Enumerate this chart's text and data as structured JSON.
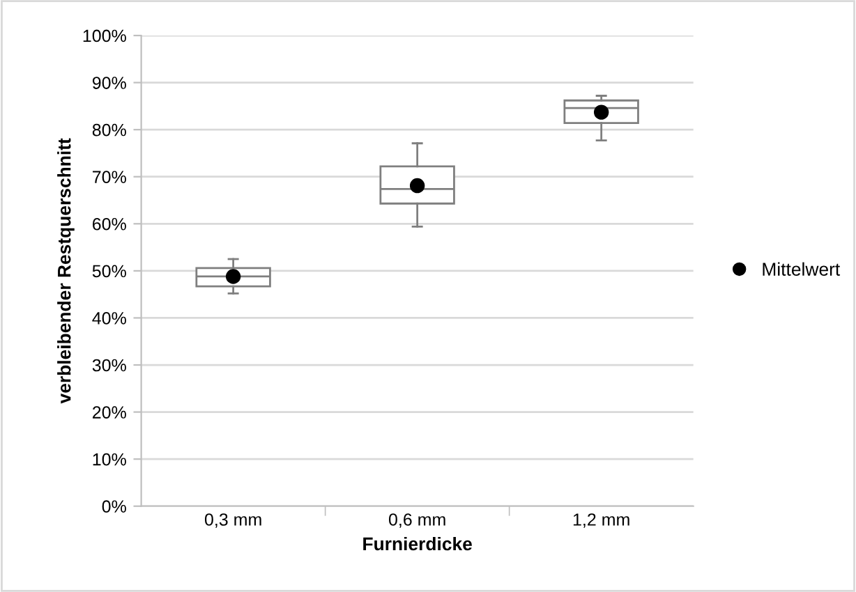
{
  "chart_data": {
    "type": "box",
    "xlabel": "Furnierdicke",
    "ylabel": "verbleibender Restquerschnitt",
    "categories": [
      "0,3 mm",
      "0,6 mm",
      "1,2 mm"
    ],
    "boxes": [
      {
        "low": 45.2,
        "q1": 46.7,
        "median": 48.8,
        "q3": 50.6,
        "high": 52.5
      },
      {
        "low": 59.4,
        "q1": 64.3,
        "median": 67.4,
        "q3": 72.2,
        "high": 77.1
      },
      {
        "low": 77.7,
        "q1": 81.4,
        "median": 84.6,
        "q3": 86.2,
        "high": 87.2
      }
    ],
    "series": [
      {
        "name": "Mittelwert",
        "type": "scatter",
        "color": "#000000",
        "x": [
          "0,3 mm",
          "0,6 mm",
          "1,2 mm"
        ],
        "values": [
          48.8,
          68.1,
          83.7
        ]
      }
    ],
    "ylim": [
      0,
      100
    ],
    "yticks": [
      {
        "value": 0,
        "label": "0%"
      },
      {
        "value": 10,
        "label": "10%"
      },
      {
        "value": 20,
        "label": "20%"
      },
      {
        "value": 30,
        "label": "30%"
      },
      {
        "value": 40,
        "label": "40%"
      },
      {
        "value": 50,
        "label": "50%"
      },
      {
        "value": 60,
        "label": "60%"
      },
      {
        "value": 70,
        "label": "70%"
      },
      {
        "value": 80,
        "label": "80%"
      },
      {
        "value": 90,
        "label": "90%"
      },
      {
        "value": 100,
        "label": "100%"
      }
    ],
    "grid": "y",
    "legend": "right",
    "marker": "circle"
  }
}
